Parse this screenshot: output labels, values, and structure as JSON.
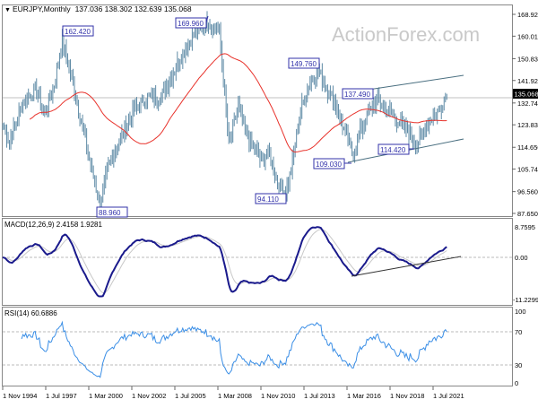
{
  "header": {
    "symbol": "EURJPY,Monthly",
    "ohlc": "137.036 138.302 132.639 135.068"
  },
  "watermark": "ActionForex.com",
  "current_price": "135.068",
  "price_axis": [
    "168.920",
    "160.010",
    "150.830",
    "141.920",
    "132.740",
    "123.830",
    "114.650",
    "105.740",
    "96.560",
    "87.650"
  ],
  "annotations": [
    {
      "text": "162.420"
    },
    {
      "text": "169.960"
    },
    {
      "text": "88.960"
    },
    {
      "text": "149.760"
    },
    {
      "text": "137.490"
    },
    {
      "text": "109.030"
    },
    {
      "text": "114.420"
    },
    {
      "text": "94.110"
    }
  ],
  "macd": {
    "label": "MACD(12,26,9) 2.4158 1.9281",
    "axis": [
      "8.7595",
      "0.00",
      "-11.2299"
    ]
  },
  "rsi": {
    "label": "RSI(14) 60.6886",
    "axis": [
      "100",
      "70",
      "30",
      "0"
    ]
  },
  "x_axis": [
    "1 Nov 1994",
    "1 Jul 1997",
    "1 Mar 2000",
    "1 Nov 2002",
    "1 Jul 2005",
    "1 Mar 2008",
    "1 Nov 2010",
    "1 Jul 2013",
    "1 Mar 2016",
    "1 Nov 2018",
    "1 Jul 2021"
  ],
  "chart_data": {
    "type": "line",
    "title": "EURJPY, Monthly",
    "ylim": [
      87.65,
      168.92
    ],
    "x_start": "1994-11",
    "waypoints_month_index": [
      0,
      5,
      15,
      25,
      31,
      38,
      44,
      48,
      58,
      68,
      72,
      77,
      84,
      97,
      107,
      117,
      130,
      140,
      152,
      160,
      164,
      167,
      174,
      180,
      190,
      197,
      203,
      209,
      213,
      220,
      226,
      233,
      240,
      246,
      253,
      258,
      266,
      276,
      284,
      293,
      301,
      306,
      315,
      323,
      327,
      328
    ],
    "waypoints_close": [
      124,
      117,
      133,
      138,
      128,
      140,
      158,
      150,
      125,
      100,
      91,
      105,
      115,
      130,
      135,
      135,
      150,
      160,
      166,
      162,
      135,
      115,
      132,
      120,
      110,
      112,
      100,
      96,
      105,
      130,
      140,
      146,
      138,
      132,
      120,
      112,
      124,
      134,
      130,
      125,
      120,
      116,
      126,
      130,
      136,
      135.068
    ],
    "colors": {
      "bars": "#5f8ba6",
      "sma": "#e8332c",
      "macd": "#1a1a8c",
      "signal": "#c8c8c8",
      "rsi": "#3a8ee6",
      "annotation": "#3333aa"
    }
  }
}
